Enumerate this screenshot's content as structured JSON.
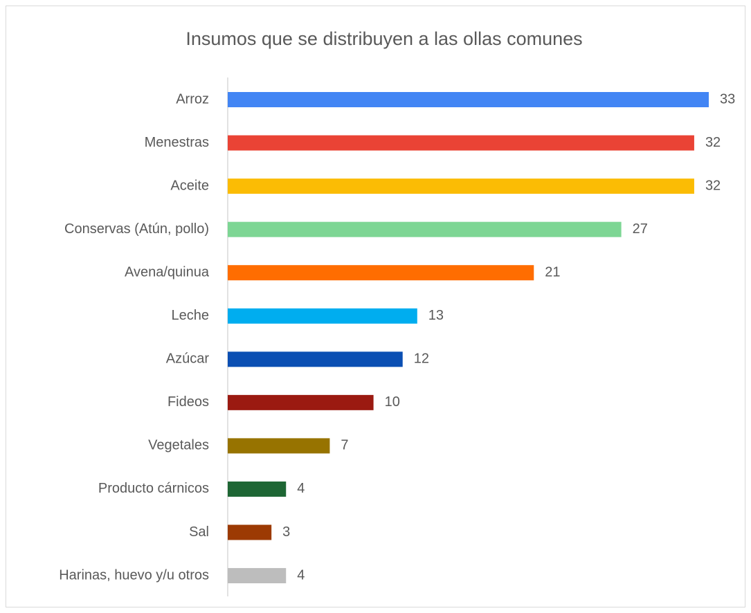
{
  "chart_data": {
    "type": "bar",
    "orientation": "horizontal",
    "title": "Insumos que se distribuyen a las ollas comunes",
    "categories": [
      "Arroz",
      "Menestras",
      "Aceite",
      "Conservas (Atún, pollo)",
      "Avena/quinua",
      "Leche",
      "Azúcar",
      "Fideos",
      "Vegetales",
      "Producto cárnicos",
      "Sal",
      "Harinas, huevo y/u otros"
    ],
    "values": [
      33,
      32,
      32,
      27,
      21,
      13,
      12,
      10,
      7,
      4,
      3,
      4
    ],
    "colors": [
      "#4285f4",
      "#ea4335",
      "#fbbc04",
      "#7dd694",
      "#ff6d01",
      "#00adef",
      "#0b4fb3",
      "#9b1a11",
      "#977300",
      "#1e6634",
      "#9c3a03",
      "#bdbdbd"
    ],
    "grid": false
  }
}
